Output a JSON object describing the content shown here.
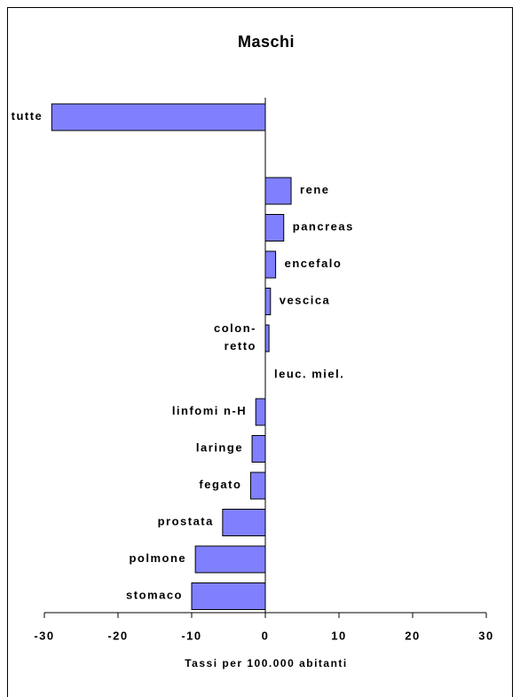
{
  "chart_data": {
    "type": "bar",
    "orientation": "horizontal",
    "title": "Maschi",
    "xlabel": "Tassi per 100.000 abitanti",
    "categories": [
      "tutte",
      null,
      "rene",
      "pancreas",
      "encefalo",
      "vescica",
      "colon-\nretto",
      "leuc. miel.",
      "linfomi n-H",
      "laringe",
      "fegato",
      "prostata",
      "polmone",
      "stomaco"
    ],
    "values": [
      -29,
      null,
      3.5,
      2.5,
      1.4,
      0.7,
      0.5,
      0,
      -1.3,
      -1.8,
      -2,
      -5.8,
      -9.5,
      -10
    ],
    "color": "#8080ff",
    "xlim": [
      -30,
      30
    ],
    "xticks": [
      -30,
      -20,
      -10,
      0,
      10,
      20,
      30
    ],
    "grid": false
  }
}
